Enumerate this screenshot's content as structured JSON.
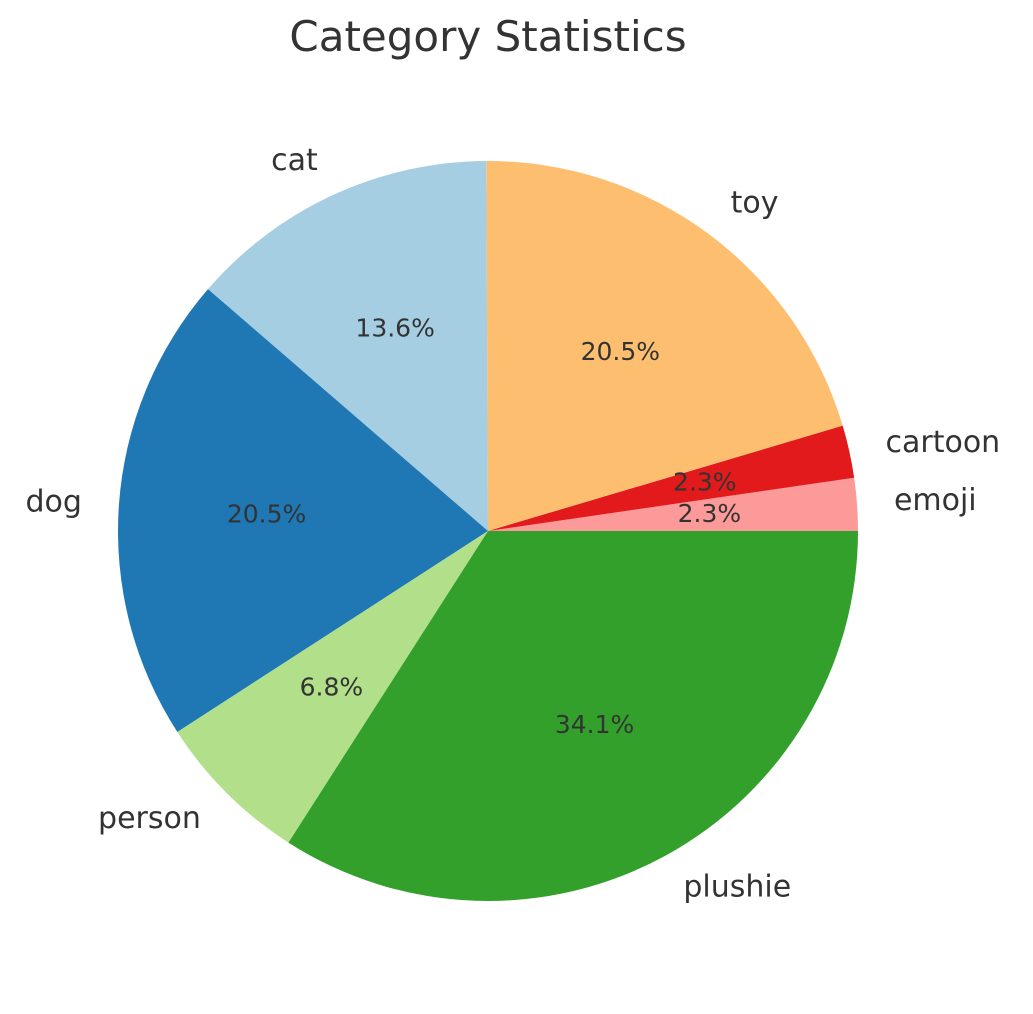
{
  "chart_data": {
    "type": "pie",
    "title": "Category Statistics",
    "start_angle_deg": 0,
    "direction": "counterclockwise",
    "slices": [
      {
        "label": "emoji",
        "value": 2.3,
        "pct_text": "2.3%",
        "color": "#fb9a99"
      },
      {
        "label": "cartoon",
        "value": 2.3,
        "pct_text": "2.3%",
        "color": "#e31a1c"
      },
      {
        "label": "toy",
        "value": 20.5,
        "pct_text": "20.5%",
        "color": "#fdbf6f"
      },
      {
        "label": "cat",
        "value": 13.6,
        "pct_text": "13.6%",
        "color": "#a6cee3"
      },
      {
        "label": "dog",
        "value": 20.5,
        "pct_text": "20.5%",
        "color": "#1f78b4"
      },
      {
        "label": "person",
        "value": 6.8,
        "pct_text": "6.8%",
        "color": "#b2df8a"
      },
      {
        "label": "plushie",
        "value": 34.1,
        "pct_text": "34.1%",
        "color": "#33a02c"
      }
    ]
  }
}
